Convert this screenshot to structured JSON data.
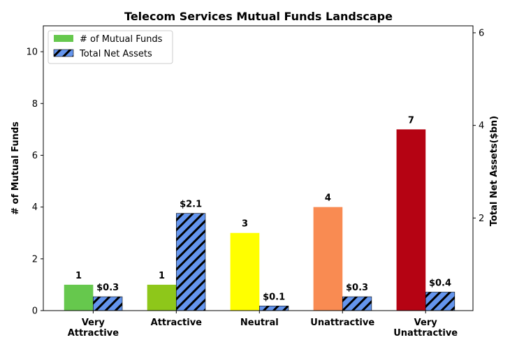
{
  "chart_data": {
    "type": "bar",
    "title": "Telecom Services Mutual Funds Landscape",
    "categories": [
      "Very\nAttractive",
      "Attractive",
      "Neutral",
      "Unattractive",
      "Very\nUnattractive"
    ],
    "series": [
      {
        "name": "# of Mutual Funds",
        "axis": "left",
        "values": [
          1,
          1,
          3,
          4,
          7
        ],
        "labels": [
          "1",
          "1",
          "3",
          "4",
          "7"
        ],
        "colors": [
          "#66c84d",
          "#8ec71a",
          "#ffff00",
          "#f98b52",
          "#b50313"
        ],
        "hatch": false
      },
      {
        "name": "Total Net Assets",
        "axis": "right",
        "values": [
          0.3,
          2.1,
          0.1,
          0.3,
          0.4
        ],
        "labels": [
          "$0.3",
          "$2.1",
          "$0.1",
          "$0.3",
          "$0.4"
        ],
        "colors": [
          "#6495ed",
          "#6495ed",
          "#6495ed",
          "#6495ed",
          "#6495ed"
        ],
        "hatch": true
      }
    ],
    "ylabel": "# of Mutual Funds",
    "y2label": "Total Net Assets($bn)",
    "ylim": [
      0,
      11
    ],
    "y2lim": [
      0,
      6.15
    ],
    "yticks": [
      0,
      2,
      4,
      6,
      8,
      10
    ],
    "y2ticks": [
      2,
      4,
      6
    ],
    "grid": false,
    "legend": "top-left"
  }
}
